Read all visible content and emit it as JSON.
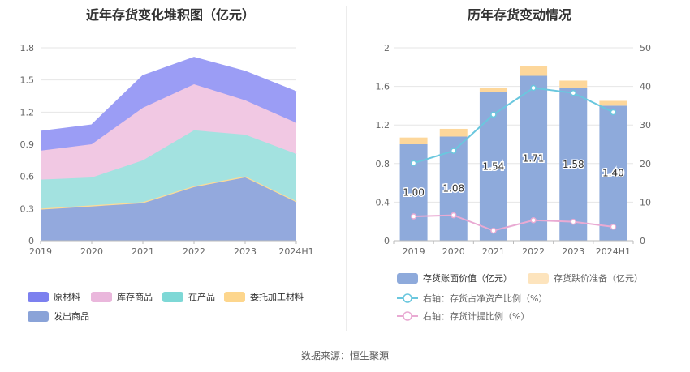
{
  "left": {
    "title": "近年存货变化堆积图（亿元）",
    "chart_data": {
      "type": "area",
      "stacked": true,
      "title": "近年存货变化堆积图（亿元）",
      "categories": [
        "2019",
        "2020",
        "2021",
        "2022",
        "2023",
        "2024H1"
      ],
      "yticks": [
        "0",
        "0.3",
        "0.6",
        "0.9",
        "1.2",
        "1.5",
        "1.8"
      ],
      "ylim": [
        0,
        1.8
      ],
      "series": [
        {
          "name": "发出商品",
          "color": "#93a9dd",
          "values": [
            0.29,
            0.32,
            0.35,
            0.5,
            0.59,
            0.36
          ]
        },
        {
          "name": "委托加工材料",
          "color": "#fddb97",
          "values": [
            0.01,
            0.01,
            0.01,
            0.01,
            0.01,
            0.01
          ]
        },
        {
          "name": "在产品",
          "color": "#a3e2e0",
          "values": [
            0.27,
            0.26,
            0.39,
            0.52,
            0.39,
            0.44
          ]
        },
        {
          "name": "库存商品",
          "color": "#f1c8e3",
          "values": [
            0.27,
            0.31,
            0.49,
            0.43,
            0.32,
            0.29
          ]
        },
        {
          "name": "原材料",
          "color": "#9b9df5",
          "values": [
            0.18,
            0.18,
            0.3,
            0.25,
            0.27,
            0.29
          ]
        }
      ],
      "legend": [
        {
          "name": "原材料",
          "color": "#7c80ef"
        },
        {
          "name": "库存商品",
          "color": "#eab7dc"
        },
        {
          "name": "在产品",
          "color": "#7ed8d6"
        },
        {
          "name": "委托加工材料",
          "color": "#fdd68d"
        },
        {
          "name": "发出商品",
          "color": "#8aa3d8"
        }
      ]
    }
  },
  "right": {
    "title": "历年存货变动情况",
    "chart_data": {
      "type": "bar",
      "title": "历年存货变动情况",
      "categories": [
        "2019",
        "2020",
        "2021",
        "2022",
        "2023",
        "2024H1"
      ],
      "ylim": [
        0,
        2
      ],
      "y2lim": [
        0,
        50
      ],
      "yticks": [
        "0",
        "0.4",
        "0.8",
        "1.2",
        "1.6",
        "2"
      ],
      "y2ticks": [
        "0",
        "10",
        "20",
        "30",
        "40",
        "50"
      ],
      "bars": [
        {
          "name": "存货账面价值（亿元）",
          "color": "#8eaadb",
          "values": [
            1.0,
            1.08,
            1.54,
            1.71,
            1.58,
            1.4
          ],
          "labels": [
            "1.00",
            "1.08",
            "1.54",
            "1.71",
            "1.58",
            "1.40"
          ]
        },
        {
          "name": "存货跌价准备（亿元）",
          "color": "#fdd79b",
          "values": [
            0.07,
            0.08,
            0.04,
            0.1,
            0.08,
            0.05
          ]
        }
      ],
      "lines": [
        {
          "name": "右轴：存货占净资产比例（%）",
          "color": "#6ac7de",
          "values": [
            20.1,
            23.3,
            32.7,
            39.6,
            38.3,
            33.3
          ]
        },
        {
          "name": "右轴：存货计提比例（%）",
          "color": "#e9aad3",
          "values": [
            6.3,
            6.6,
            2.6,
            5.3,
            4.9,
            3.6
          ]
        }
      ]
    }
  },
  "source": "数据来源：恒生聚源"
}
